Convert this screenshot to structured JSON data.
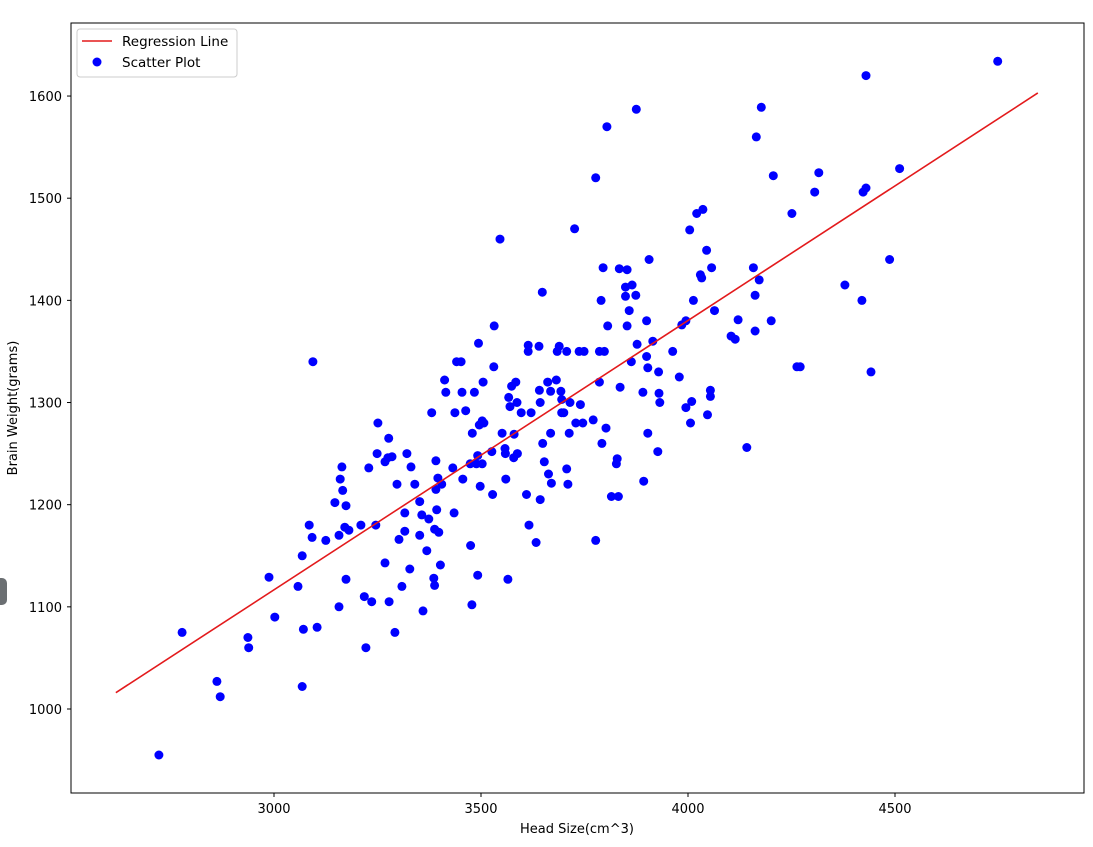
{
  "chart_data": {
    "type": "scatter",
    "title": "",
    "xlabel": "Head Size(cm^3)",
    "ylabel": "Brain Weight(grams)",
    "xlim": [
      2465,
      4912
    ],
    "ylim": [
      919,
      1671
    ],
    "xticks": [
      3000,
      3500,
      4000,
      4500
    ],
    "yticks": [
      1000,
      1100,
      1200,
      1300,
      1400,
      1500,
      1600
    ],
    "grid": false,
    "legend_position": "upper left",
    "legend": [
      "Regression Line",
      "Scatter Plot"
    ],
    "colors": {
      "line": "#e31a1c",
      "points": "#0000ff"
    },
    "series": [
      {
        "name": "Regression Line",
        "type": "line",
        "x": [
          2618,
          4845
        ],
        "y": [
          1016,
          1603
        ]
      },
      {
        "name": "Scatter Plot",
        "type": "scatter",
        "points": [
          [
            2722,
            955
          ],
          [
            2778,
            1075
          ],
          [
            2862,
            1027
          ],
          [
            2870,
            1012
          ],
          [
            2937,
            1070
          ],
          [
            2939,
            1060
          ],
          [
            2988,
            1129
          ],
          [
            3002,
            1090
          ],
          [
            3058,
            1120
          ],
          [
            3068,
            1150
          ],
          [
            3071,
            1078
          ],
          [
            3068,
            1022
          ],
          [
            3085,
            1180
          ],
          [
            3092,
            1168
          ],
          [
            3104,
            1080
          ],
          [
            3094,
            1340
          ],
          [
            3125,
            1165
          ],
          [
            3147,
            1202
          ],
          [
            3157,
            1170
          ],
          [
            3157,
            1100
          ],
          [
            3160,
            1225
          ],
          [
            3164,
            1237
          ],
          [
            3166,
            1214
          ],
          [
            3174,
            1199
          ],
          [
            3171,
            1178
          ],
          [
            3174,
            1127
          ],
          [
            3181,
            1175
          ],
          [
            3210,
            1180
          ],
          [
            3218,
            1110
          ],
          [
            3222,
            1060
          ],
          [
            3229,
            1236
          ],
          [
            3236,
            1105
          ],
          [
            3246,
            1180
          ],
          [
            3249,
            1250
          ],
          [
            3251,
            1280
          ],
          [
            3268,
            1242
          ],
          [
            3268,
            1143
          ],
          [
            3275,
            1246
          ],
          [
            3277,
            1265
          ],
          [
            3278,
            1105
          ],
          [
            3285,
            1247
          ],
          [
            3292,
            1075
          ],
          [
            3297,
            1220
          ],
          [
            3302,
            1166
          ],
          [
            3309,
            1120
          ],
          [
            3316,
            1192
          ],
          [
            3316,
            1174
          ],
          [
            3321,
            1250
          ],
          [
            3328,
            1137
          ],
          [
            3331,
            1237
          ],
          [
            3340,
            1220
          ],
          [
            3352,
            1170
          ],
          [
            3352,
            1203
          ],
          [
            3357,
            1190
          ],
          [
            3360,
            1096
          ],
          [
            3369,
            1155
          ],
          [
            3374,
            1186
          ],
          [
            3381,
            1290
          ],
          [
            3386,
            1128
          ],
          [
            3388,
            1121
          ],
          [
            3388,
            1176
          ],
          [
            3391,
            1243
          ],
          [
            3391,
            1215
          ],
          [
            3393,
            1195
          ],
          [
            3396,
            1226
          ],
          [
            3398,
            1173
          ],
          [
            3402,
            1141
          ],
          [
            3405,
            1220
          ],
          [
            3412,
            1322
          ],
          [
            3415,
            1310
          ],
          [
            3432,
            1236
          ],
          [
            3435,
            1192
          ],
          [
            3437,
            1290
          ],
          [
            3441,
            1340
          ],
          [
            3452,
            1340
          ],
          [
            3454,
            1310
          ],
          [
            3456,
            1225
          ],
          [
            3463,
            1292
          ],
          [
            3474,
            1240
          ],
          [
            3475,
            1160
          ],
          [
            3478,
            1102
          ],
          [
            3479,
            1270
          ],
          [
            3484,
            1310
          ],
          [
            3489,
            1240
          ],
          [
            3492,
            1248
          ],
          [
            3492,
            1131
          ],
          [
            3494,
            1358
          ],
          [
            3496,
            1278
          ],
          [
            3498,
            1218
          ],
          [
            3503,
            1282
          ],
          [
            3503,
            1240
          ],
          [
            3505,
            1320
          ],
          [
            3507,
            1280
          ],
          [
            3526,
            1252
          ],
          [
            3528,
            1210
          ],
          [
            3532,
            1375
          ],
          [
            3531,
            1335
          ],
          [
            3546,
            1460
          ],
          [
            3551,
            1270
          ],
          [
            3558,
            1255
          ],
          [
            3559,
            1250
          ],
          [
            3560,
            1225
          ],
          [
            3565,
            1127
          ],
          [
            3567,
            1305
          ],
          [
            3570,
            1296
          ],
          [
            3574,
            1316
          ],
          [
            3579,
            1246
          ],
          [
            3580,
            1269
          ],
          [
            3584,
            1320
          ],
          [
            3587,
            1300
          ],
          [
            3588,
            1250
          ],
          [
            3597,
            1290
          ],
          [
            3610,
            1210
          ],
          [
            3614,
            1350
          ],
          [
            3614,
            1356
          ],
          [
            3616,
            1180
          ],
          [
            3621,
            1290
          ],
          [
            3633,
            1163
          ],
          [
            3640,
            1355
          ],
          [
            3641,
            1312
          ],
          [
            3643,
            1205
          ],
          [
            3643,
            1300
          ],
          [
            3649,
            1260
          ],
          [
            3648,
            1408
          ],
          [
            3653,
            1242
          ],
          [
            3661,
            1320
          ],
          [
            3663,
            1230
          ],
          [
            3668,
            1270
          ],
          [
            3668,
            1311
          ],
          [
            3670,
            1221
          ],
          [
            3682,
            1322
          ],
          [
            3684,
            1350
          ],
          [
            3689,
            1355
          ],
          [
            3693,
            1311
          ],
          [
            3695,
            1290
          ],
          [
            3695,
            1303
          ],
          [
            3700,
            1290
          ],
          [
            3707,
            1350
          ],
          [
            3707,
            1235
          ],
          [
            3710,
            1220
          ],
          [
            3713,
            1270
          ],
          [
            3715,
            1300
          ],
          [
            3726,
            1470
          ],
          [
            3729,
            1280
          ],
          [
            3737,
            1350
          ],
          [
            3740,
            1298
          ],
          [
            3746,
            1280
          ],
          [
            3749,
            1350
          ],
          [
            3771,
            1283
          ],
          [
            3777,
            1520
          ],
          [
            3777,
            1165
          ],
          [
            3786,
            1350
          ],
          [
            3786,
            1320
          ],
          [
            3790,
            1400
          ],
          [
            3792,
            1260
          ],
          [
            3795,
            1432
          ],
          [
            3798,
            1350
          ],
          [
            3802,
            1275
          ],
          [
            3804,
            1570
          ],
          [
            3806,
            1375
          ],
          [
            3815,
            1208
          ],
          [
            3827,
            1240
          ],
          [
            3829,
            1245
          ],
          [
            3832,
            1208
          ],
          [
            3834,
            1431
          ],
          [
            3836,
            1315
          ],
          [
            3849,
            1413
          ],
          [
            3849,
            1404
          ],
          [
            3853,
            1375
          ],
          [
            3853,
            1430
          ],
          [
            3858,
            1390
          ],
          [
            3863,
            1340
          ],
          [
            3865,
            1415
          ],
          [
            3874,
            1405
          ],
          [
            3875,
            1587
          ],
          [
            3877,
            1357
          ],
          [
            3891,
            1310
          ],
          [
            3893,
            1223
          ],
          [
            3900,
            1380
          ],
          [
            3900,
            1345
          ],
          [
            3903,
            1270
          ],
          [
            3906,
            1440
          ],
          [
            3903,
            1334
          ],
          [
            3915,
            1360
          ],
          [
            3927,
            1252
          ],
          [
            3929,
            1330
          ],
          [
            3932,
            1300
          ],
          [
            3930,
            1309
          ],
          [
            3963,
            1350
          ],
          [
            3979,
            1325
          ],
          [
            3985,
            1376
          ],
          [
            3995,
            1295
          ],
          [
            3995,
            1380
          ],
          [
            4006,
            1280
          ],
          [
            4004,
            1469
          ],
          [
            4009,
            1301
          ],
          [
            4013,
            1400
          ],
          [
            4021,
            1485
          ],
          [
            4030,
            1425
          ],
          [
            4033,
            1422
          ],
          [
            4036,
            1489
          ],
          [
            4045,
            1449
          ],
          [
            4047,
            1288
          ],
          [
            4054,
            1306
          ],
          [
            4054,
            1312
          ],
          [
            4057,
            1432
          ],
          [
            4064,
            1390
          ],
          [
            4104,
            1365
          ],
          [
            4114,
            1362
          ],
          [
            4121,
            1381
          ],
          [
            4142,
            1256
          ],
          [
            4158,
            1432
          ],
          [
            4162,
            1405
          ],
          [
            4162,
            1370
          ],
          [
            4165,
            1560
          ],
          [
            4172,
            1420
          ],
          [
            4177,
            1589
          ],
          [
            4201,
            1380
          ],
          [
            4206,
            1522
          ],
          [
            4251,
            1485
          ],
          [
            4263,
            1335
          ],
          [
            4271,
            1335
          ],
          [
            4306,
            1506
          ],
          [
            4316,
            1525
          ],
          [
            4379,
            1415
          ],
          [
            4420,
            1400
          ],
          [
            4423,
            1506
          ],
          [
            4430,
            1510
          ],
          [
            4430,
            1620
          ],
          [
            4442,
            1330
          ],
          [
            4487,
            1440
          ],
          [
            4511,
            1529
          ],
          [
            4748,
            1634
          ]
        ]
      }
    ]
  }
}
